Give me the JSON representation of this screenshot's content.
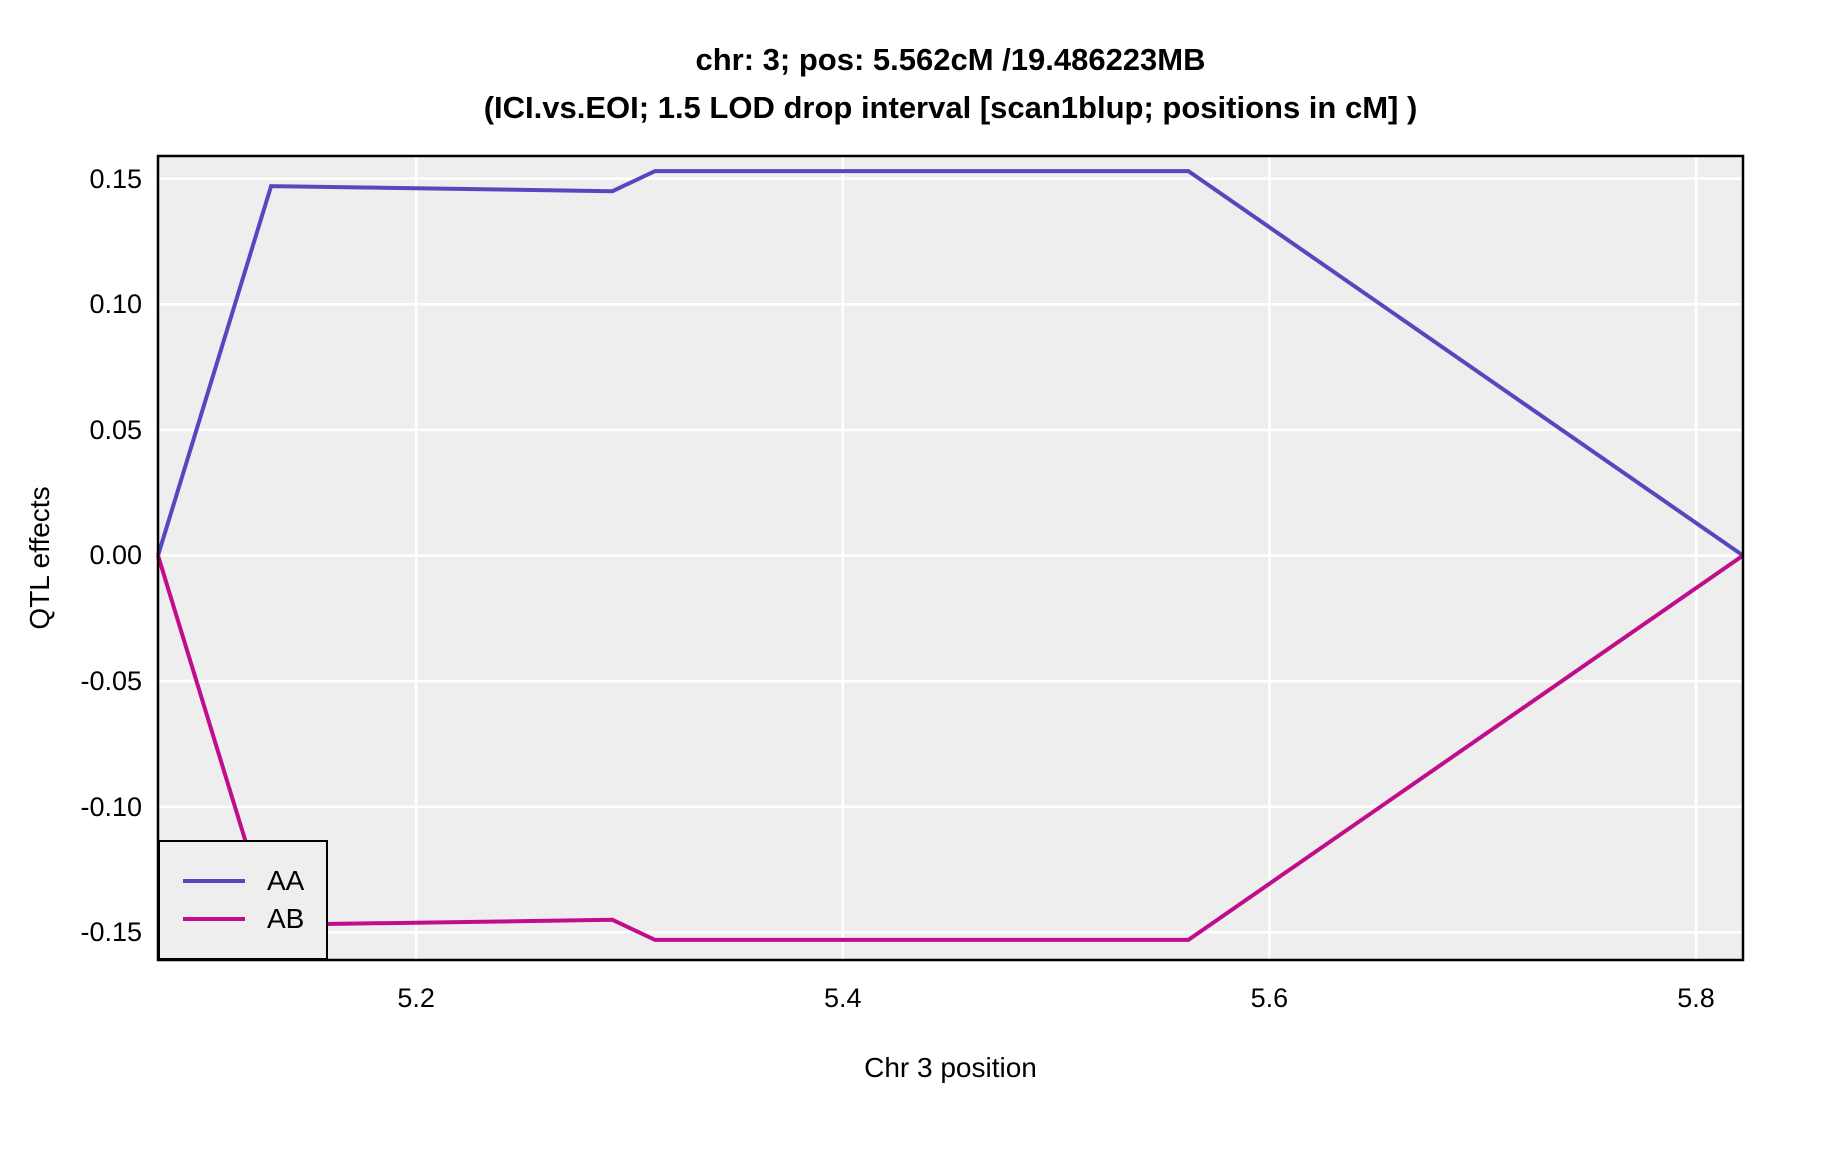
{
  "title": {
    "line1": "chr: 3; pos: 5.562cM /19.486223MB",
    "line2": "(ICI.vs.EOI; 1.5 LOD drop interval [scan1blup; positions in cM] )"
  },
  "chart_data": {
    "type": "line",
    "title": "chr: 3; pos: 5.562cM /19.486223MB (ICI.vs.EOI; 1.5 LOD drop interval [scan1blup; positions in cM] )",
    "xlabel": "Chr 3 position",
    "ylabel": "QTL effects",
    "x": [
      5.079,
      5.132,
      5.292,
      5.312,
      5.562,
      5.822
    ],
    "series": [
      {
        "name": "AA",
        "color": "#5548BE",
        "values": [
          0,
          0.147,
          0.145,
          0.153,
          0.153,
          0
        ]
      },
      {
        "name": "AB",
        "color": "#C00D8C",
        "values": [
          0,
          -0.147,
          -0.145,
          -0.153,
          -0.153,
          0
        ]
      }
    ],
    "x_ticks": [
      5.2,
      5.4,
      5.6,
      5.8
    ],
    "x_tick_labels": [
      "5.2",
      "5.4",
      "5.6",
      "5.8"
    ],
    "y_ticks": [
      0.15,
      0.1,
      0.05,
      0.0,
      -0.05,
      -0.1,
      -0.15
    ],
    "y_tick_labels": [
      "0.15",
      "0.10",
      "0.05",
      "0.00",
      "-0.05",
      "-0.10",
      "-0.15"
    ],
    "xlim": [
      5.079,
      5.822
    ],
    "ylim": [
      -0.161,
      0.159
    ],
    "grid": true,
    "grid_color": "#FFFFFF",
    "panel_bg": "#EEEEEE",
    "panel_border_color": "#000000",
    "legend_position": "bottom-left"
  }
}
